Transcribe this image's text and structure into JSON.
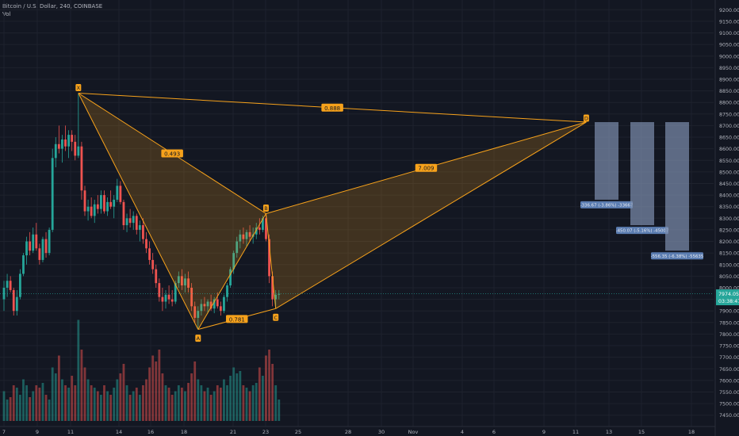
{
  "header": {
    "symbol_line": "Bitcoin / U.S. Dollar, 240, COINBASE",
    "volume_label": "Vol"
  },
  "price_axis": {
    "ticks": [
      9200,
      9150,
      9100,
      9050,
      9000,
      8950,
      8900,
      8850,
      8800,
      8750,
      8700,
      8650,
      8600,
      8550,
      8500,
      8450,
      8400,
      8350,
      8300,
      8250,
      8200,
      8150,
      8100,
      8050,
      8000,
      7950,
      7900,
      7850,
      7800,
      7750,
      7700,
      7650,
      7600,
      7550,
      7500,
      7450
    ],
    "current_price": "7974.05",
    "countdown": "03:38:47",
    "current_value": 7974.05
  },
  "time_axis": {
    "labels": [
      "7",
      "9",
      "11",
      "14",
      "16",
      "18",
      "21",
      "23",
      "25",
      "28",
      "30",
      "Nov",
      "4",
      "6",
      "9",
      "11",
      "13",
      "15",
      "18"
    ]
  },
  "colors": {
    "background": "#131722",
    "up": "#26a69a",
    "down": "#ef5350",
    "pattern": "#f7a21b",
    "projection": "#7e8fae",
    "price_badge": "#26a69a"
  },
  "pattern": {
    "points": [
      {
        "label": "X",
        "price": 8840,
        "bar": 23
      },
      {
        "label": "A",
        "price": 7820,
        "bar": 60
      },
      {
        "label": "B",
        "price": 8320,
        "bar": 81
      },
      {
        "label": "C",
        "price": 7910,
        "bar": 84
      },
      {
        "label": "D",
        "price": 8715,
        "bar": 180
      }
    ],
    "ratios": [
      {
        "text": "0.888",
        "between": [
          "X",
          "D"
        ]
      },
      {
        "text": "0.493",
        "between": [
          "X",
          "B"
        ]
      },
      {
        "text": "7.009",
        "between": [
          "B",
          "D"
        ]
      },
      {
        "text": "0.781",
        "between": [
          "A",
          "C"
        ]
      }
    ]
  },
  "targets": [
    {
      "bottom_price": 8380,
      "label": "-336.67 (-3.86%) -33667"
    },
    {
      "bottom_price": 8270,
      "label": "-450.07 (-5.16%) -45007"
    },
    {
      "bottom_price": 8160,
      "label": "-556.35 (-6.38%) -55635"
    }
  ],
  "chart_data": {
    "type": "candlestick",
    "title": "Bitcoin / U.S. Dollar, 240, COINBASE",
    "ylim": [
      7425,
      9225
    ],
    "x_labels": [
      "7",
      "9",
      "11",
      "14",
      "16",
      "18",
      "21",
      "23",
      "25",
      "28",
      "30",
      "Nov",
      "4",
      "6",
      "9",
      "11",
      "13",
      "15",
      "18"
    ],
    "candles": [
      [
        7950,
        8030,
        7900,
        8000
      ],
      [
        8000,
        8060,
        7960,
        8030
      ],
      [
        8030,
        8050,
        7980,
        7990
      ],
      [
        7990,
        8000,
        7880,
        7900
      ],
      [
        7900,
        7990,
        7880,
        7960
      ],
      [
        7960,
        8080,
        7950,
        8060
      ],
      [
        8060,
        8150,
        8050,
        8140
      ],
      [
        8140,
        8220,
        8100,
        8200
      ],
      [
        8200,
        8240,
        8140,
        8160
      ],
      [
        8160,
        8260,
        8150,
        8230
      ],
      [
        8230,
        8280,
        8160,
        8170
      ],
      [
        8170,
        8190,
        8100,
        8120
      ],
      [
        8120,
        8220,
        8110,
        8210
      ],
      [
        8210,
        8240,
        8130,
        8150
      ],
      [
        8150,
        8260,
        8140,
        8250
      ],
      [
        8250,
        8600,
        8240,
        8560
      ],
      [
        8560,
        8650,
        8520,
        8620
      ],
      [
        8620,
        8700,
        8580,
        8600
      ],
      [
        8600,
        8660,
        8540,
        8640
      ],
      [
        8640,
        8700,
        8590,
        8610
      ],
      [
        8610,
        8680,
        8560,
        8660
      ],
      [
        8660,
        8680,
        8590,
        8630
      ],
      [
        8630,
        8660,
        8550,
        8570
      ],
      [
        8570,
        8840,
        8560,
        8610
      ],
      [
        8610,
        8630,
        8380,
        8420
      ],
      [
        8420,
        8440,
        8310,
        8330
      ],
      [
        8330,
        8380,
        8290,
        8350
      ],
      [
        8350,
        8390,
        8300,
        8310
      ],
      [
        8310,
        8380,
        8280,
        8360
      ],
      [
        8360,
        8400,
        8320,
        8340
      ],
      [
        8340,
        8420,
        8320,
        8400
      ],
      [
        8400,
        8420,
        8320,
        8330
      ],
      [
        8330,
        8390,
        8310,
        8370
      ],
      [
        8370,
        8420,
        8340,
        8350
      ],
      [
        8350,
        8400,
        8300,
        8380
      ],
      [
        8380,
        8470,
        8370,
        8440
      ],
      [
        8440,
        8460,
        8360,
        8370
      ],
      [
        8370,
        8380,
        8250,
        8270
      ],
      [
        8270,
        8320,
        8240,
        8300
      ],
      [
        8300,
        8340,
        8260,
        8280
      ],
      [
        8280,
        8330,
        8250,
        8310
      ],
      [
        8310,
        8320,
        8230,
        8250
      ],
      [
        8250,
        8290,
        8200,
        8270
      ],
      [
        8270,
        8300,
        8190,
        8210
      ],
      [
        8210,
        8240,
        8150,
        8170
      ],
      [
        8170,
        8200,
        8100,
        8120
      ],
      [
        8120,
        8150,
        8060,
        8080
      ],
      [
        8080,
        8100,
        8000,
        8020
      ],
      [
        8020,
        8040,
        7940,
        7960
      ],
      [
        7960,
        8000,
        7900,
        7940
      ],
      [
        7940,
        7990,
        7910,
        7970
      ],
      [
        7970,
        8010,
        7930,
        7950
      ],
      [
        7950,
        7990,
        7920,
        7940
      ],
      [
        7940,
        8030,
        7930,
        8020
      ],
      [
        8020,
        8070,
        8000,
        8050
      ],
      [
        8050,
        8080,
        7990,
        8010
      ],
      [
        8010,
        8060,
        7980,
        8040
      ],
      [
        8040,
        8070,
        7980,
        8000
      ],
      [
        8000,
        8020,
        7900,
        7920
      ],
      [
        7920,
        7940,
        7850,
        7870
      ],
      [
        7870,
        7920,
        7820,
        7900
      ],
      [
        7900,
        7950,
        7880,
        7930
      ],
      [
        7930,
        7960,
        7900,
        7920
      ],
      [
        7920,
        7950,
        7890,
        7940
      ],
      [
        7940,
        7970,
        7900,
        7910
      ],
      [
        7910,
        7960,
        7890,
        7950
      ],
      [
        7950,
        7980,
        7910,
        7920
      ],
      [
        7920,
        7940,
        7880,
        7900
      ],
      [
        7900,
        7970,
        7890,
        7960
      ],
      [
        7960,
        8020,
        7940,
        8010
      ],
      [
        8010,
        8090,
        8000,
        8080
      ],
      [
        8080,
        8160,
        8060,
        8150
      ],
      [
        8150,
        8220,
        8130,
        8200
      ],
      [
        8200,
        8250,
        8170,
        8230
      ],
      [
        8230,
        8260,
        8190,
        8210
      ],
      [
        8210,
        8250,
        8180,
        8240
      ],
      [
        8240,
        8270,
        8200,
        8220
      ],
      [
        8220,
        8260,
        8190,
        8230
      ],
      [
        8230,
        8280,
        8210,
        8260
      ],
      [
        8260,
        8300,
        8230,
        8250
      ],
      [
        8250,
        8310,
        8240,
        8300
      ],
      [
        8300,
        8320,
        8200,
        8210
      ],
      [
        8210,
        8230,
        8020,
        8050
      ],
      [
        8050,
        8070,
        7920,
        7950
      ],
      [
        7950,
        7990,
        7910,
        7970
      ],
      [
        7970,
        7990,
        7950,
        7974
      ]
    ],
    "volume": [
      0.25,
      0.18,
      0.2,
      0.3,
      0.28,
      0.22,
      0.35,
      0.3,
      0.2,
      0.25,
      0.3,
      0.28,
      0.32,
      0.22,
      0.18,
      0.45,
      0.4,
      0.55,
      0.35,
      0.3,
      0.28,
      0.38,
      0.3,
      0.85,
      0.6,
      0.45,
      0.35,
      0.3,
      0.28,
      0.25,
      0.22,
      0.3,
      0.25,
      0.22,
      0.28,
      0.35,
      0.4,
      0.48,
      0.3,
      0.22,
      0.25,
      0.28,
      0.22,
      0.3,
      0.35,
      0.45,
      0.55,
      0.5,
      0.6,
      0.4,
      0.3,
      0.28,
      0.22,
      0.25,
      0.3,
      0.28,
      0.25,
      0.32,
      0.4,
      0.5,
      0.35,
      0.3,
      0.25,
      0.28,
      0.22,
      0.25,
      0.3,
      0.28,
      0.35,
      0.3,
      0.38,
      0.45,
      0.4,
      0.42,
      0.3,
      0.28,
      0.25,
      0.3,
      0.32,
      0.45,
      0.38,
      0.55,
      0.6,
      0.48,
      0.3,
      0.18
    ]
  }
}
